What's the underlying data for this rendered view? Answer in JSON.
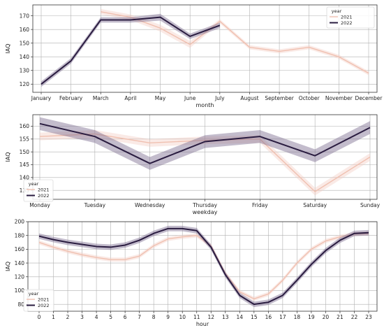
{
  "chart_data": [
    {
      "type": "line",
      "xlabel": "month",
      "ylabel": "IAQ",
      "ylim": [
        114,
        178
      ],
      "yticks": [
        120,
        130,
        140,
        150,
        160,
        170
      ],
      "categories": [
        "January",
        "February",
        "March",
        "April",
        "May",
        "June",
        "July",
        "August",
        "September",
        "October",
        "November",
        "December"
      ],
      "grid": true,
      "legend": {
        "title": "year",
        "position": "top-right",
        "entries": [
          "2021",
          "2022"
        ]
      },
      "series": [
        {
          "name": "2021",
          "color": "#f0c0b0",
          "band_color": "#f3cbc0",
          "values": [
            null,
            null,
            173,
            169,
            161,
            149,
            166,
            147,
            144,
            147,
            140,
            128
          ],
          "band": [
            1.5,
            1.5,
            2,
            2,
            2.5,
            2.5,
            1.5,
            1.5,
            1.5,
            1.5,
            1.5,
            1.5
          ]
        },
        {
          "name": "2022",
          "color": "#2a1c40",
          "band_color": "#7a6a8e",
          "values": [
            120,
            137,
            167,
            167,
            169,
            155,
            163,
            null,
            null,
            null,
            null,
            null
          ],
          "band": [
            2,
            2,
            2,
            2,
            2.5,
            2,
            2,
            0,
            0,
            0,
            0,
            0
          ]
        }
      ]
    },
    {
      "type": "line",
      "xlabel": "weekday",
      "ylabel": "IAQ",
      "ylim": [
        131.5,
        164.5
      ],
      "yticks": [
        135,
        140,
        145,
        150,
        155,
        160
      ],
      "categories": [
        "Monday",
        "Tuesday",
        "Wednesday",
        "Thursday",
        "Friday",
        "Saturday",
        "Sunday"
      ],
      "grid": true,
      "legend": {
        "title": "year",
        "position": "bottom-left",
        "entries": [
          "2021",
          "2022"
        ]
      },
      "series": [
        {
          "name": "2021",
          "color": "#f0c0b0",
          "band_color": "#f3cbc0",
          "values": [
            156,
            157,
            153.5,
            154.5,
            155,
            134.5,
            148
          ],
          "band": [
            1.5,
            1.5,
            1.5,
            1.5,
            1.5,
            1.5,
            1.5
          ]
        },
        {
          "name": "2022",
          "color": "#2a1c40",
          "band_color": "#7a6a8e",
          "values": [
            161,
            156,
            145.5,
            154,
            156,
            148.5,
            159.5
          ],
          "band": [
            2.5,
            2.5,
            2.5,
            2.5,
            2.5,
            2.5,
            2.5
          ]
        }
      ]
    },
    {
      "type": "line",
      "xlabel": "hour",
      "ylabel": "IAQ",
      "ylim": [
        70,
        200
      ],
      "yticks": [
        80,
        100,
        120,
        140,
        160,
        180,
        200
      ],
      "categories": [
        "0",
        "1",
        "2",
        "3",
        "4",
        "5",
        "6",
        "7",
        "8",
        "9",
        "10",
        "11",
        "12",
        "13",
        "14",
        "15",
        "16",
        "17",
        "18",
        "19",
        "20",
        "21",
        "22",
        "23"
      ],
      "grid": true,
      "legend": {
        "title": "year",
        "position": "bottom-left",
        "entries": [
          "2021",
          "2022"
        ]
      },
      "series": [
        {
          "name": "2021",
          "color": "#f0c0b0",
          "band_color": "#f3cbc0",
          "values": [
            170,
            163,
            157,
            152,
            148,
            145,
            145,
            150,
            165,
            175,
            178,
            180,
            165,
            125,
            98,
            88,
            95,
            115,
            140,
            160,
            172,
            178,
            182,
            183
          ],
          "band": [
            3,
            3,
            3,
            3,
            3,
            3,
            3,
            3,
            3,
            3,
            3,
            3,
            3,
            3,
            3,
            3,
            3,
            3,
            3,
            3,
            3,
            3,
            3,
            3
          ]
        },
        {
          "name": "2022",
          "color": "#2a1c40",
          "band_color": "#7a6a8e",
          "values": [
            179,
            174,
            170,
            167,
            164,
            163,
            166,
            173,
            183,
            190,
            190,
            187,
            163,
            123,
            93,
            80,
            83,
            93,
            115,
            138,
            158,
            173,
            183,
            184
          ],
          "band": [
            4,
            4,
            4,
            4,
            4,
            4,
            4,
            4,
            4,
            4,
            4,
            4,
            4,
            4,
            4,
            4,
            4,
            4,
            4,
            4,
            4,
            4,
            4,
            4
          ]
        }
      ]
    }
  ]
}
